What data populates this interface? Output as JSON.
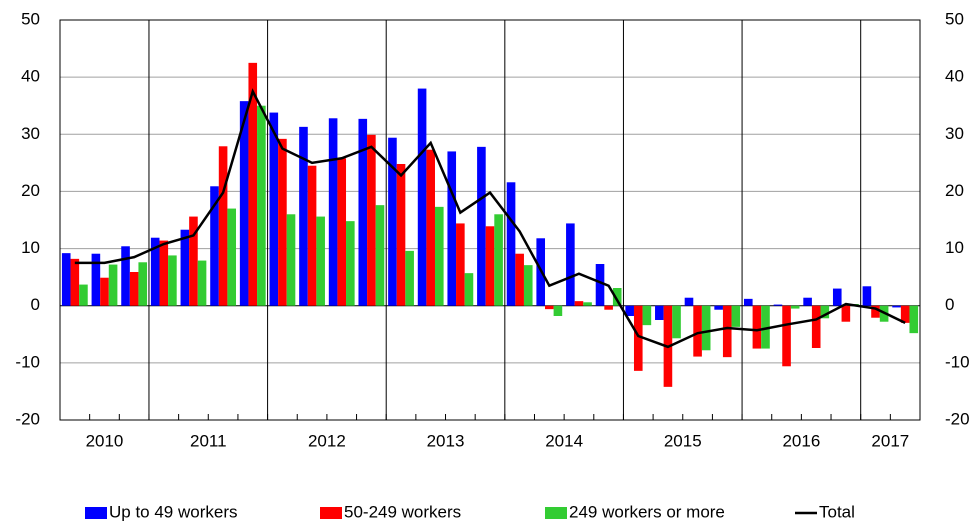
{
  "chart_data": {
    "type": "bar_line",
    "categories": [
      "2010",
      "2010",
      "2010",
      "2011",
      "2011",
      "2011",
      "2011",
      "2012",
      "2012",
      "2012",
      "2012",
      "2013",
      "2013",
      "2013",
      "2013",
      "2014",
      "2014",
      "2014",
      "2014",
      "2015",
      "2015",
      "2015",
      "2015",
      "2016",
      "2016",
      "2016",
      "2016",
      "2017",
      "2017"
    ],
    "series": [
      {
        "name": "Up to 49 workers",
        "type": "bar",
        "color": "#0000ff",
        "values": [
          9.2,
          9.1,
          10.4,
          11.9,
          13.3,
          20.9,
          35.8,
          33.8,
          31.3,
          32.8,
          32.7,
          29.4,
          38.0,
          27.0,
          27.8,
          21.6,
          11.8,
          14.4,
          7.3,
          -1.8,
          -2.5,
          1.4,
          -0.7,
          1.2,
          0.2,
          1.4,
          3.0,
          3.4,
          -0.3
        ]
      },
      {
        "name": "50-249 workers",
        "type": "bar",
        "color": "#ff0000",
        "values": [
          8.2,
          4.9,
          5.9,
          11.4,
          15.6,
          27.9,
          42.5,
          29.2,
          24.5,
          25.8,
          29.9,
          24.8,
          27.3,
          14.4,
          13.9,
          9.1,
          -0.6,
          0.8,
          -0.7,
          -11.4,
          -14.2,
          -8.9,
          -9.0,
          -7.5,
          -10.6,
          -7.4,
          -2.8,
          -2.1,
          -3.0
        ]
      },
      {
        "name": "249 workers or more",
        "type": "bar",
        "color": "#33cc33",
        "values": [
          3.7,
          7.2,
          7.6,
          8.8,
          7.9,
          17.0,
          35.0,
          16.0,
          15.6,
          14.8,
          17.6,
          9.6,
          17.3,
          5.7,
          16.0,
          7.1,
          -1.8,
          0.6,
          3.1,
          -3.4,
          -5.7,
          -7.8,
          -3.7,
          -7.5,
          -0.5,
          -2.2,
          0.3,
          -2.8,
          -4.8
        ]
      },
      {
        "name": "Total",
        "type": "line",
        "color": "#000000",
        "values": [
          7.5,
          7.5,
          8.5,
          10.8,
          12.3,
          19.8,
          37.5,
          27.5,
          25.0,
          25.8,
          27.8,
          22.8,
          28.5,
          16.3,
          19.8,
          13.0,
          3.5,
          5.6,
          3.5,
          -5.3,
          -7.2,
          -4.8,
          -3.9,
          -4.3,
          -3.3,
          -2.4,
          0.3,
          -0.5,
          -3.0
        ]
      }
    ],
    "ylim": [
      -20,
      50
    ],
    "yticks": [
      -20,
      -10,
      0,
      10,
      20,
      30,
      40,
      50
    ],
    "y2lim": [
      -20,
      50
    ],
    "y2ticks": [
      -20,
      -10,
      0,
      10,
      20,
      30,
      40,
      50
    ],
    "grid": true
  }
}
